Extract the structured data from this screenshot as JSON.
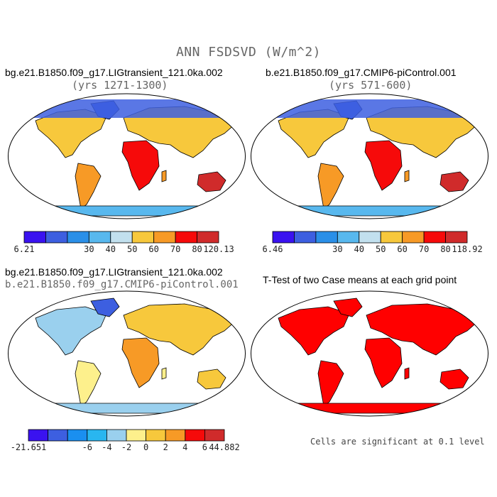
{
  "title": "ANN FSDSVD (W/m^2)",
  "panels": [
    {
      "case": "bg.e21.B1850.f09_g17.LIGtransient_121.0ka.002",
      "years": "(yrs 1271-1300)"
    },
    {
      "case": "b.e21.B1850.f09_g17.CMIP6-piControl.001",
      "years": "(yrs 571-600)"
    },
    {
      "case": "bg.e21.B1850.f09_g17.LIGtransient_121.0ka.002",
      "case2": "b.e21.B1850.f09_g17.CMIP6-piControl.001"
    },
    {
      "title": "T-Test of two Case means at each grid point",
      "note": "Cells are significant at 0.1 level"
    }
  ],
  "colorbars": [
    {
      "labels": [
        "6.21",
        "30",
        "40",
        "50",
        "60",
        "70",
        "80",
        "120.13"
      ],
      "colors": [
        "#3a12f0",
        "#3d5fe0",
        "#2a8fe8",
        "#58b8ee",
        "#c2e0ee",
        "#f7c83c",
        "#f79a26",
        "#f60a0a",
        "#d02b2b"
      ]
    },
    {
      "labels": [
        "6.46",
        "30",
        "40",
        "50",
        "60",
        "70",
        "80",
        "118.92"
      ],
      "colors": [
        "#3a12f0",
        "#3d5fe0",
        "#2a8fe8",
        "#58b8ee",
        "#c2e0ee",
        "#f7c83c",
        "#f79a26",
        "#f60a0a",
        "#d02b2b"
      ]
    },
    {
      "labels": [
        "-21.651",
        "-6",
        "-4",
        "-2",
        "0",
        "2",
        "4",
        "6",
        "44.882"
      ],
      "colors": [
        "#3a12f0",
        "#3d5fe0",
        "#1a8ff0",
        "#29b6f0",
        "#9ad0ee",
        "#fdf08c",
        "#f7c83c",
        "#f79a26",
        "#f60a0a",
        "#d02b2b"
      ]
    }
  ],
  "colors": {
    "continent_fill_mean": "#f79a26",
    "polar_mean": "#3d5fe0",
    "ocean": "#ffffff",
    "diff_fill": "#c2e0ee",
    "ttest_sig": "#ff0000",
    "coast": "#000000"
  }
}
